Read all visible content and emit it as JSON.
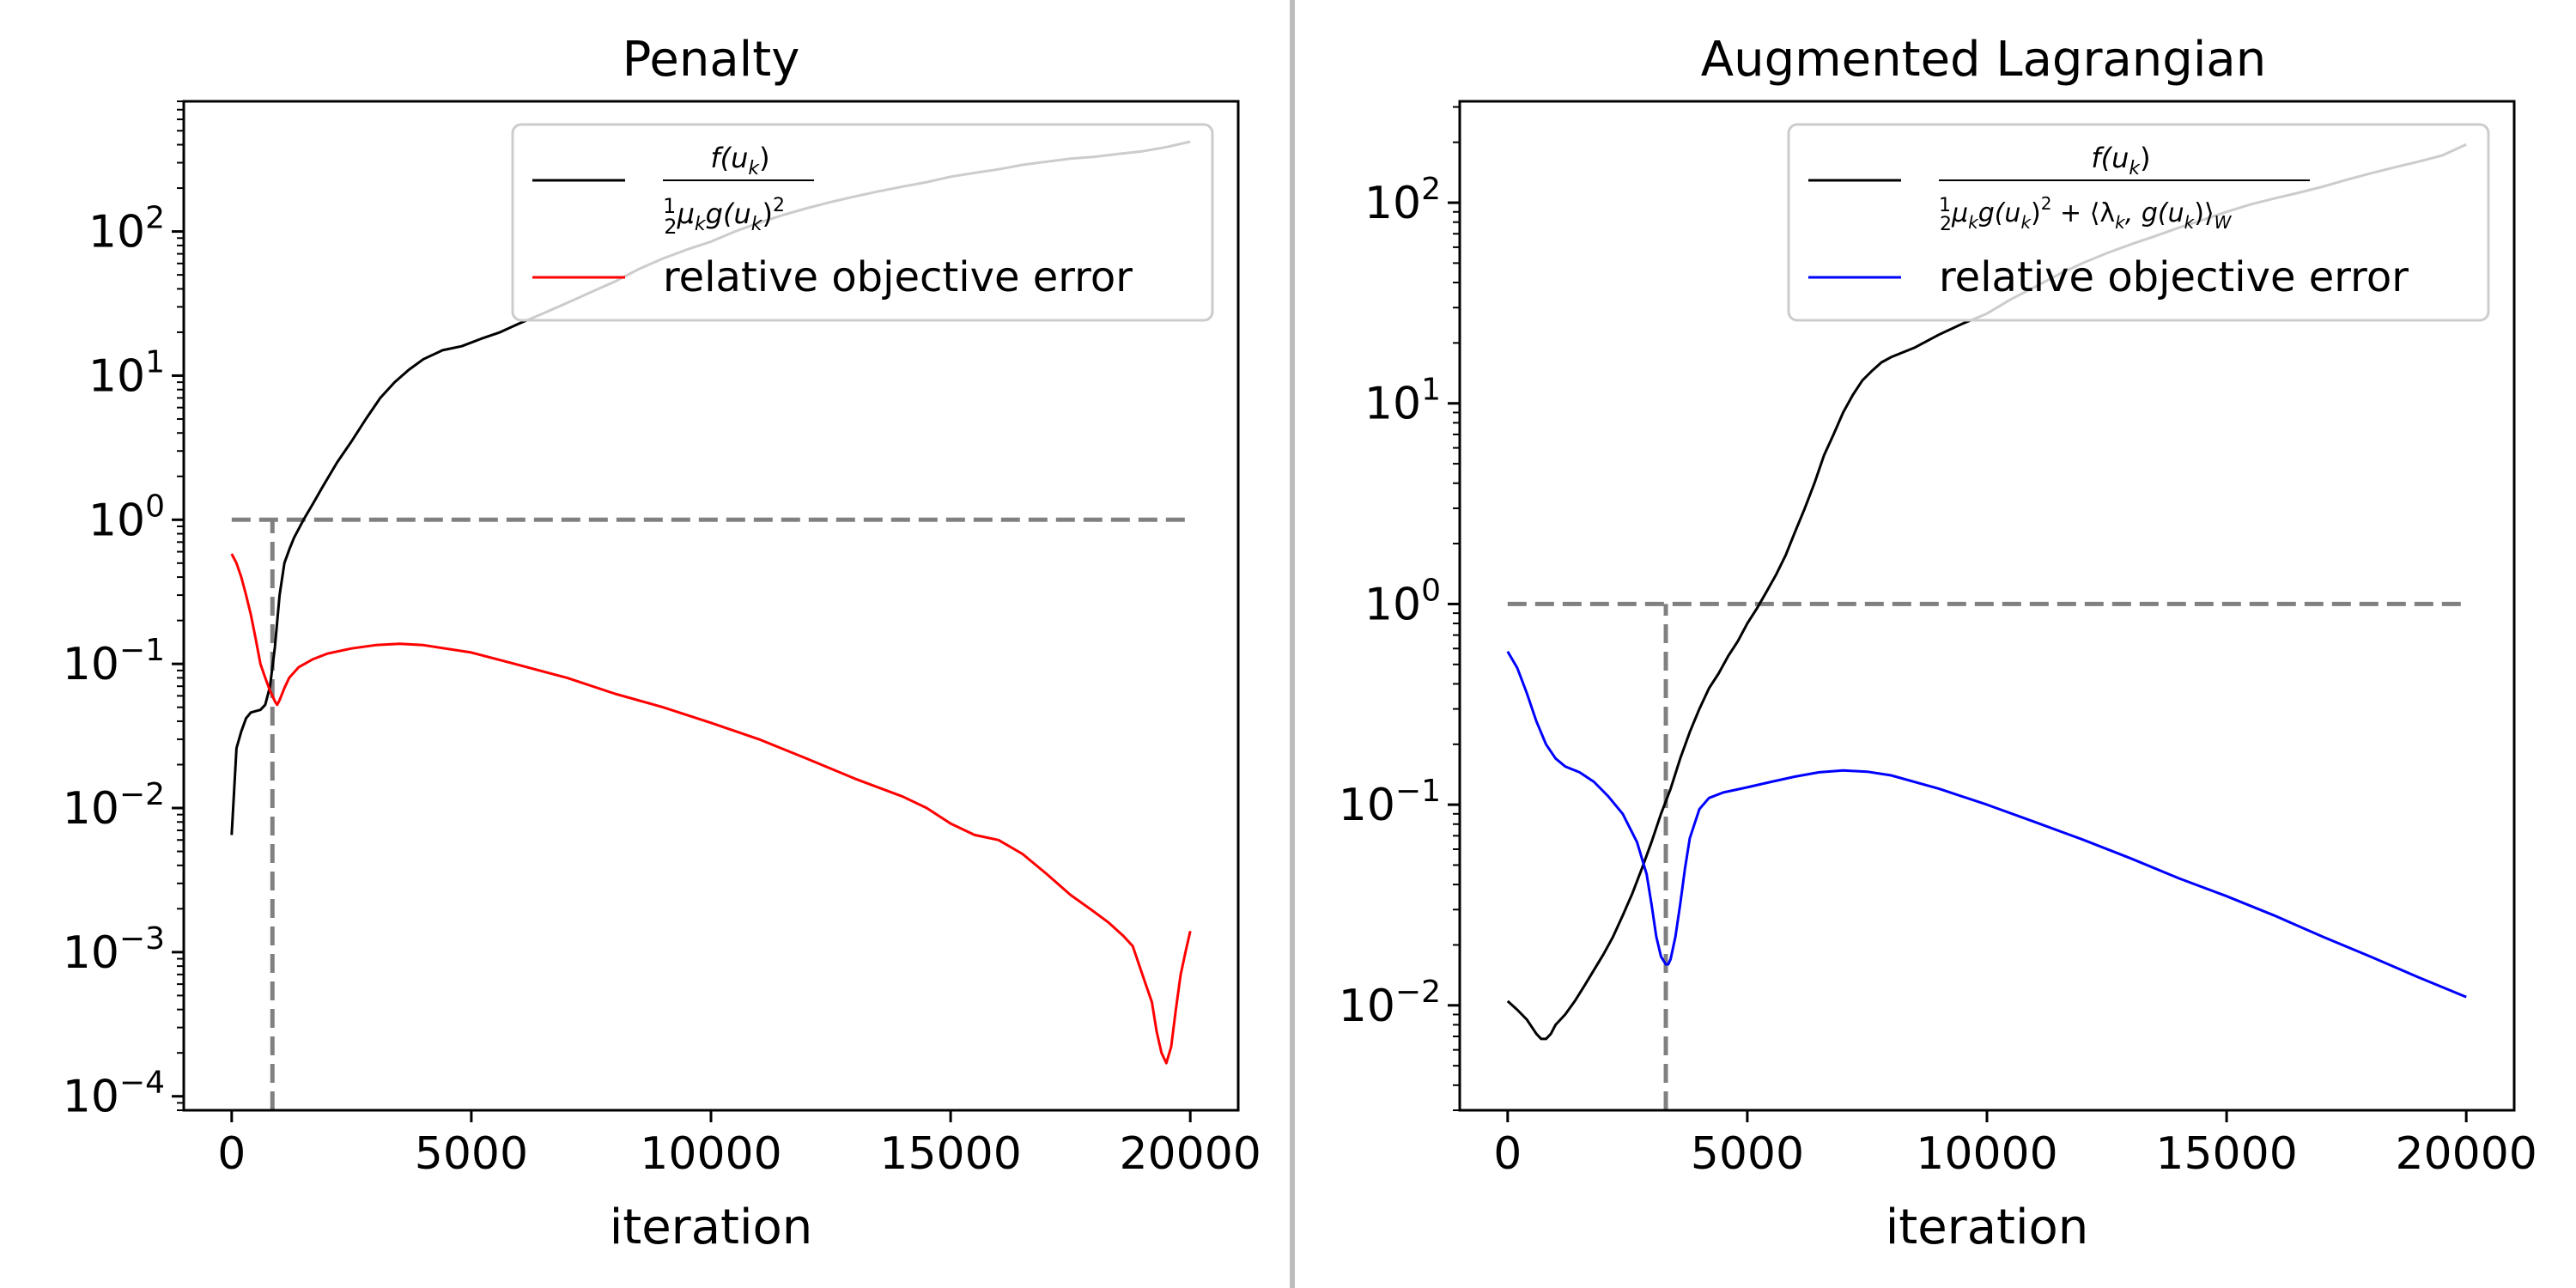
{
  "chart_data": [
    {
      "type": "line",
      "title": "Penalty",
      "xlabel": "iteration",
      "ylabel": "",
      "xlim": [
        -1000,
        21000
      ],
      "ylim": [
        8e-05,
        800
      ],
      "yscale": "log",
      "xticks": [
        0,
        5000,
        10000,
        15000,
        20000
      ],
      "xtick_labels": [
        "0",
        "5000",
        "10000",
        "15000",
        "20000"
      ],
      "ytick_exponents": [
        -4,
        -3,
        -2,
        -1,
        0,
        1,
        2
      ],
      "ytick_labels": [
        "10",
        "10",
        "10",
        "10",
        "10",
        "10",
        "10"
      ],
      "ytick_label_exponents": [
        "−4",
        "−3",
        "−2",
        "−1",
        "0",
        "1",
        "2"
      ],
      "grid": false,
      "legend_position": "top-right",
      "series": [
        {
          "name": "f(u_k) / (½ μ_k g(u_k)²)",
          "legend_numerator": "f(u",
          "legend_numerator_sub": "k",
          "legend_numerator_close": ")",
          "legend_denominator": "μ",
          "legend_denominator_sub": "k",
          "legend_denominator_mid": "g(u",
          "legend_denominator_sub2": "k",
          "legend_denominator_close": ")",
          "legend_denominator_sup": "2",
          "color": "#000000",
          "x": [
            0,
            100,
            200,
            300,
            400,
            500,
            600,
            700,
            800,
            900,
            1000,
            1100,
            1200,
            1300,
            1500,
            1700,
            1900,
            2200,
            2500,
            2800,
            3100,
            3400,
            3700,
            4000,
            4400,
            4800,
            5200,
            5600,
            6000,
            6500,
            7000,
            7500,
            8000,
            8500,
            9000,
            9500,
            10000,
            10500,
            11000,
            11500,
            12000,
            12500,
            13000,
            13500,
            14000,
            14500,
            15000,
            15500,
            16000,
            16500,
            17000,
            17500,
            18000,
            18500,
            19000,
            19500,
            20000
          ],
          "y": [
            0.0065,
            0.026,
            0.034,
            0.042,
            0.046,
            0.047,
            0.048,
            0.052,
            0.07,
            0.13,
            0.3,
            0.5,
            0.62,
            0.75,
            1.0,
            1.3,
            1.7,
            2.5,
            3.5,
            5.0,
            7.0,
            9.0,
            11.0,
            13.0,
            15.0,
            16.0,
            18.0,
            20.0,
            23.0,
            27.0,
            32.0,
            38.0,
            45.0,
            55.0,
            65.0,
            75.0,
            85.0,
            100.0,
            115.0,
            130.0,
            145.0,
            160.0,
            175.0,
            190.0,
            205.0,
            220.0,
            240.0,
            255.0,
            270.0,
            290.0,
            305.0,
            320.0,
            330.0,
            345.0,
            360.0,
            385.0,
            420.0
          ]
        },
        {
          "name": "relative objective error",
          "color": "#ff0000",
          "x": [
            0,
            100,
            200,
            300,
            400,
            500,
            600,
            700,
            800,
            850,
            900,
            950,
            1000,
            1100,
            1200,
            1400,
            1700,
            2000,
            2500,
            3000,
            3500,
            4000,
            5000,
            6000,
            7000,
            8000,
            9000,
            10000,
            11000,
            12000,
            13000,
            14000,
            14500,
            15000,
            15500,
            16000,
            16500,
            17000,
            17500,
            18000,
            18300,
            18600,
            18800,
            19000,
            19200,
            19300,
            19400,
            19500,
            19600,
            19700,
            19800,
            19900,
            20000
          ],
          "y": [
            0.58,
            0.5,
            0.4,
            0.3,
            0.22,
            0.15,
            0.1,
            0.08,
            0.065,
            0.06,
            0.055,
            0.052,
            0.056,
            0.068,
            0.08,
            0.095,
            0.108,
            0.118,
            0.128,
            0.135,
            0.138,
            0.135,
            0.12,
            0.098,
            0.08,
            0.062,
            0.05,
            0.039,
            0.03,
            0.022,
            0.016,
            0.012,
            0.01,
            0.0078,
            0.0065,
            0.006,
            0.0048,
            0.0035,
            0.0025,
            0.0019,
            0.0016,
            0.0013,
            0.0011,
            0.0007,
            0.00045,
            0.00028,
            0.0002,
            0.00017,
            0.00022,
            0.0004,
            0.0007,
            0.001,
            0.0014
          ]
        }
      ],
      "reference_lines": {
        "hline_y": 1,
        "hline_x": [
          0,
          20000
        ],
        "vline_x": 850,
        "vline_y": [
          8e-05,
          1
        ]
      }
    },
    {
      "type": "line",
      "title": "Augmented Lagrangian",
      "xlabel": "iteration",
      "ylabel": "",
      "xlim": [
        -1000,
        21000
      ],
      "ylim": [
        0.003,
        320
      ],
      "yscale": "log",
      "xticks": [
        0,
        5000,
        10000,
        15000,
        20000
      ],
      "xtick_labels": [
        "0",
        "5000",
        "10000",
        "15000",
        "20000"
      ],
      "ytick_exponents": [
        -2,
        -1,
        0,
        1,
        2
      ],
      "ytick_labels": [
        "10",
        "10",
        "10",
        "10",
        "10"
      ],
      "ytick_label_exponents": [
        "−2",
        "−1",
        "0",
        "1",
        "2"
      ],
      "grid": false,
      "legend_position": "top-right",
      "series": [
        {
          "name": "f(u_k) / (½ μ_k g(u_k)² + ⟨λ_k, g(u_k)⟩_W)",
          "legend_numerator": "f(u",
          "legend_numerator_sub": "k",
          "legend_numerator_close": ")",
          "legend_denominator": "μ",
          "legend_denominator_sub": "k",
          "legend_denominator_mid": "g(u",
          "legend_denominator_sub2": "k",
          "legend_denominator_close": ")",
          "legend_denominator_sup": "2",
          "legend_denominator_tail": " + ⟨λ",
          "legend_denominator_sub3": "k",
          "legend_denominator_tail2": ", g(u",
          "legend_denominator_sub4": "k",
          "legend_denominator_tail3": ")⟩",
          "legend_denominator_sub5": "W",
          "color": "#000000",
          "x": [
            0,
            200,
            400,
            600,
            700,
            800,
            900,
            1000,
            1200,
            1400,
            1600,
            1800,
            2000,
            2200,
            2400,
            2600,
            2800,
            3000,
            3200,
            3400,
            3600,
            3800,
            4000,
            4200,
            4400,
            4600,
            4800,
            5000,
            5200,
            5400,
            5600,
            5800,
            6000,
            6200,
            6400,
            6600,
            6800,
            7000,
            7200,
            7400,
            7600,
            7800,
            8000,
            8500,
            9000,
            9500,
            10000,
            10500,
            11000,
            11500,
            12000,
            12500,
            13000,
            13500,
            14000,
            14500,
            15000,
            15500,
            16000,
            16500,
            17000,
            17500,
            18000,
            18500,
            19000,
            19500,
            20000
          ],
          "y": [
            0.0105,
            0.0095,
            0.0085,
            0.0072,
            0.0068,
            0.0068,
            0.0072,
            0.008,
            0.009,
            0.0105,
            0.0125,
            0.015,
            0.018,
            0.022,
            0.028,
            0.036,
            0.048,
            0.065,
            0.09,
            0.12,
            0.17,
            0.23,
            0.3,
            0.38,
            0.45,
            0.55,
            0.65,
            0.8,
            0.95,
            1.15,
            1.4,
            1.75,
            2.3,
            3.0,
            4.0,
            5.5,
            7.0,
            9.0,
            11.0,
            13.0,
            14.5,
            16.0,
            17.0,
            19.0,
            22.0,
            25.0,
            28.0,
            33.0,
            38.0,
            44.0,
            50.0,
            56.0,
            62.0,
            68.0,
            75.0,
            82.0,
            90.0,
            98.0,
            105.0,
            112.0,
            120.0,
            130.0,
            140.0,
            150.0,
            160.0,
            172.0,
            195.0
          ]
        },
        {
          "name": "relative objective error",
          "color": "#0000ff",
          "x": [
            0,
            200,
            400,
            600,
            800,
            1000,
            1200,
            1500,
            1800,
            2100,
            2400,
            2700,
            2900,
            3000,
            3100,
            3200,
            3300,
            3350,
            3400,
            3500,
            3600,
            3700,
            3800,
            4000,
            4200,
            4500,
            5000,
            5500,
            6000,
            6500,
            7000,
            7500,
            8000,
            9000,
            10000,
            11000,
            12000,
            13000,
            14000,
            15000,
            16000,
            17000,
            18000,
            19000,
            20000
          ],
          "y": [
            0.58,
            0.48,
            0.36,
            0.26,
            0.2,
            0.17,
            0.155,
            0.145,
            0.13,
            0.11,
            0.09,
            0.065,
            0.045,
            0.032,
            0.022,
            0.0175,
            0.016,
            0.016,
            0.017,
            0.022,
            0.032,
            0.048,
            0.068,
            0.095,
            0.108,
            0.115,
            0.122,
            0.13,
            0.138,
            0.145,
            0.148,
            0.146,
            0.14,
            0.12,
            0.1,
            0.082,
            0.067,
            0.054,
            0.043,
            0.035,
            0.028,
            0.022,
            0.0175,
            0.0138,
            0.011
          ]
        }
      ],
      "reference_lines": {
        "hline_y": 1,
        "hline_x": [
          0,
          20000
        ],
        "vline_x": 3300,
        "vline_y": [
          0.003,
          1
        ]
      }
    }
  ]
}
